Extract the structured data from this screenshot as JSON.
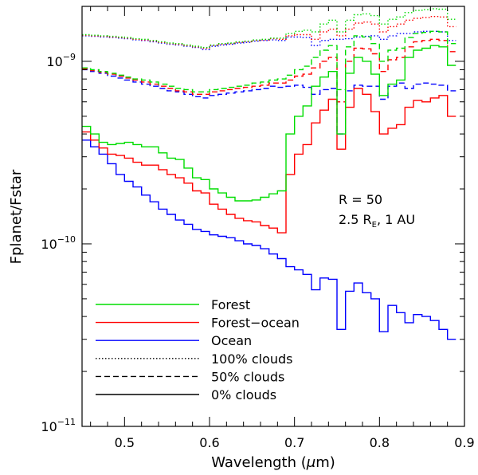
{
  "chart_data": {
    "type": "line",
    "xlabel": "Wavelength (",
    "xlabel_symbol": "μ",
    "xlabel_suffix": "m)",
    "ylabel": "Fplanet/Fstar",
    "y_scale": "log",
    "xlim": [
      0.45,
      0.9
    ],
    "ylim": [
      1e-11,
      2e-09
    ],
    "x_ticks": [
      {
        "value": 0.5,
        "label": "0.5"
      },
      {
        "value": 0.6,
        "label": "0.6"
      },
      {
        "value": 0.7,
        "label": "0.7"
      },
      {
        "value": 0.8,
        "label": "0.8"
      },
      {
        "value": 0.9,
        "label": "0.9"
      }
    ],
    "y_ticks": [
      {
        "value": 1e-09,
        "base": "10",
        "exp": "−9"
      },
      {
        "value": 1e-10,
        "base": "10",
        "exp": "−10"
      },
      {
        "value": 1e-11,
        "base": "10",
        "exp": "−11"
      }
    ],
    "annotation": {
      "line1": "R  =  50",
      "line2_prefix": "2.5 R",
      "line2_sub": "E",
      "line2_suffix": ",  1 AU"
    },
    "x": [
      0.455,
      0.465,
      0.475,
      0.485,
      0.495,
      0.505,
      0.515,
      0.525,
      0.535,
      0.545,
      0.555,
      0.565,
      0.575,
      0.585,
      0.595,
      0.605,
      0.615,
      0.625,
      0.635,
      0.645,
      0.655,
      0.665,
      0.675,
      0.685,
      0.695,
      0.705,
      0.715,
      0.725,
      0.735,
      0.745,
      0.755,
      0.765,
      0.775,
      0.785,
      0.795,
      0.805,
      0.815,
      0.825,
      0.835,
      0.845,
      0.855,
      0.865,
      0.875,
      0.885
    ],
    "series": [
      {
        "name": "Ocean 0% clouds",
        "surface": "Ocean",
        "clouds": "0%",
        "color": "#0000ff",
        "values": [
          3.7e-10,
          3.4e-10,
          3.1e-10,
          2.75e-10,
          2.4e-10,
          2.2e-10,
          2.05e-10,
          1.85e-10,
          1.7e-10,
          1.55e-10,
          1.45e-10,
          1.35e-10,
          1.28e-10,
          1.2e-10,
          1.17e-10,
          1.12e-10,
          1.1e-10,
          1.08e-10,
          1.04e-10,
          1e-10,
          9.8e-11,
          9.4e-11,
          8.8e-11,
          8.3e-11,
          7.5e-11,
          7.2e-11,
          6.8e-11,
          5.6e-11,
          6.5e-11,
          6.4e-11,
          3.4e-11,
          5.5e-11,
          6.1e-11,
          5.4e-11,
          5e-11,
          3.3e-11,
          4.6e-11,
          4.2e-11,
          3.7e-11,
          4.1e-11,
          4e-11,
          3.8e-11,
          3.4e-11,
          3e-11
        ]
      },
      {
        "name": "Forest-ocean 0% clouds",
        "surface": "Forest-ocean",
        "clouds": "0%",
        "color": "#ff0000",
        "values": [
          4.1e-10,
          3.7e-10,
          3.35e-10,
          3.1e-10,
          3.05e-10,
          2.95e-10,
          2.8e-10,
          2.7e-10,
          2.7e-10,
          2.55e-10,
          2.4e-10,
          2.3e-10,
          2.15e-10,
          1.95e-10,
          1.9e-10,
          1.65e-10,
          1.55e-10,
          1.45e-10,
          1.38e-10,
          1.34e-10,
          1.32e-10,
          1.26e-10,
          1.22e-10,
          1.15e-10,
          2.4e-10,
          3.1e-10,
          3.5e-10,
          4.6e-10,
          5.4e-10,
          6.2e-10,
          3.3e-10,
          5.6e-10,
          7.1e-10,
          6.6e-10,
          5.3e-10,
          4e-10,
          4.3e-10,
          4.5e-10,
          5.6e-10,
          6.1e-10,
          6e-10,
          6.3e-10,
          6.5e-10,
          5e-10
        ]
      },
      {
        "name": "Forest 0% clouds",
        "surface": "Forest",
        "clouds": "0%",
        "color": "#00dd00",
        "values": [
          4.4e-10,
          4e-10,
          3.6e-10,
          3.5e-10,
          3.55e-10,
          3.6e-10,
          3.5e-10,
          3.4e-10,
          3.4e-10,
          3.15e-10,
          2.95e-10,
          2.9e-10,
          2.6e-10,
          2.3e-10,
          2.25e-10,
          2e-10,
          1.9e-10,
          1.8e-10,
          1.72e-10,
          1.72e-10,
          1.74e-10,
          1.8e-10,
          1.88e-10,
          1.95e-10,
          4e-10,
          5e-10,
          5.7e-10,
          7.3e-10,
          8.2e-10,
          8.8e-10,
          4e-10,
          8.6e-10,
          1.05e-09,
          1e-09,
          8.5e-10,
          6.5e-10,
          7.5e-10,
          7.9e-10,
          1.05e-09,
          1.15e-09,
          1.18e-09,
          1.22e-09,
          1.2e-09,
          9.5e-10
        ]
      },
      {
        "name": "Ocean 50% clouds",
        "surface": "Ocean",
        "clouds": "50%",
        "color": "#0000ff",
        "values": [
          9e-10,
          8.8e-10,
          8.6e-10,
          8.3e-10,
          8.1e-10,
          7.9e-10,
          7.7e-10,
          7.5e-10,
          7.3e-10,
          7.1e-10,
          6.9e-10,
          6.8e-10,
          6.6e-10,
          6.4e-10,
          6.3e-10,
          6.5e-10,
          6.6e-10,
          6.7e-10,
          6.8e-10,
          6.9e-10,
          7e-10,
          7.1e-10,
          7.3e-10,
          7.2e-10,
          7.3e-10,
          7.4e-10,
          7.2e-10,
          6.6e-10,
          7e-10,
          7.1e-10,
          4e-10,
          6.9e-10,
          7.4e-10,
          7.3e-10,
          7.3e-10,
          6.2e-10,
          7.3e-10,
          7.6e-10,
          7.1e-10,
          7.5e-10,
          7.6e-10,
          7.5e-10,
          7.4e-10,
          6.9e-10
        ]
      },
      {
        "name": "Forest-ocean 50% clouds",
        "surface": "Forest-ocean",
        "clouds": "50%",
        "color": "#ff0000",
        "values": [
          9.1e-10,
          8.9e-10,
          8.7e-10,
          8.5e-10,
          8.3e-10,
          8.1e-10,
          7.9e-10,
          7.7e-10,
          7.5e-10,
          7.3e-10,
          7.1e-10,
          6.9e-10,
          6.8e-10,
          6.6e-10,
          6.6e-10,
          6.8e-10,
          6.9e-10,
          7e-10,
          7.1e-10,
          7.2e-10,
          7.3e-10,
          7.4e-10,
          7.6e-10,
          7.6e-10,
          7.9e-10,
          8.3e-10,
          8.5e-10,
          9.2e-10,
          1e-09,
          1.05e-09,
          6e-10,
          1e-09,
          1.18e-09,
          1.17e-09,
          1.1e-09,
          8.8e-10,
          1.02e-09,
          1.05e-09,
          1.2e-09,
          1.28e-09,
          1.3e-09,
          1.32e-09,
          1.3e-09,
          1.13e-09
        ]
      },
      {
        "name": "Forest 50% clouds",
        "surface": "Forest",
        "clouds": "50%",
        "color": "#00dd00",
        "values": [
          9.2e-10,
          9e-10,
          8.8e-10,
          8.6e-10,
          8.4e-10,
          8.2e-10,
          8e-10,
          7.9e-10,
          7.7e-10,
          7.5e-10,
          7.3e-10,
          7.1e-10,
          7e-10,
          6.8e-10,
          6.8e-10,
          7e-10,
          7.1e-10,
          7.2e-10,
          7.3e-10,
          7.4e-10,
          7.6e-10,
          7.7e-10,
          7.9e-10,
          8e-10,
          8.4e-10,
          9e-10,
          9.4e-10,
          1.05e-09,
          1.15e-09,
          1.22e-09,
          7e-10,
          1.2e-09,
          1.38e-09,
          1.36e-09,
          1.25e-09,
          1e-09,
          1.15e-09,
          1.18e-09,
          1.35e-09,
          1.42e-09,
          1.44e-09,
          1.46e-09,
          1.45e-09,
          1.25e-09
        ]
      },
      {
        "name": "Ocean 100% clouds",
        "surface": "Ocean",
        "clouds": "100%",
        "color": "#0000ff",
        "values": [
          1.38e-09,
          1.37e-09,
          1.36e-09,
          1.35e-09,
          1.34e-09,
          1.33e-09,
          1.31e-09,
          1.3e-09,
          1.28e-09,
          1.26e-09,
          1.24e-09,
          1.23e-09,
          1.21e-09,
          1.19e-09,
          1.16e-09,
          1.21e-09,
          1.23e-09,
          1.24e-09,
          1.26e-09,
          1.27e-09,
          1.29e-09,
          1.3e-09,
          1.31e-09,
          1.3e-09,
          1.36e-09,
          1.36e-09,
          1.35e-09,
          1.22e-09,
          1.3e-09,
          1.32e-09,
          1.32e-09,
          1.33e-09,
          1.36e-09,
          1.37e-09,
          1.38e-09,
          1.32e-09,
          1.38e-09,
          1.42e-09,
          1.42e-09,
          1.45e-09,
          1.46e-09,
          1.46e-09,
          1.45e-09,
          1.3e-09
        ]
      },
      {
        "name": "Forest-ocean 100% clouds",
        "surface": "Forest-ocean",
        "clouds": "100%",
        "color": "#ff0000",
        "values": [
          1.39e-09,
          1.38e-09,
          1.37e-09,
          1.36e-09,
          1.35e-09,
          1.34e-09,
          1.32e-09,
          1.31e-09,
          1.29e-09,
          1.27e-09,
          1.25e-09,
          1.24e-09,
          1.22e-09,
          1.2e-09,
          1.18e-09,
          1.22e-09,
          1.24e-09,
          1.25e-09,
          1.27e-09,
          1.28e-09,
          1.3e-09,
          1.31e-09,
          1.33e-09,
          1.32e-09,
          1.38e-09,
          1.4e-09,
          1.4e-09,
          1.32e-09,
          1.45e-09,
          1.5e-09,
          1.38e-09,
          1.5e-09,
          1.62e-09,
          1.64e-09,
          1.6e-09,
          1.45e-09,
          1.55e-09,
          1.6e-09,
          1.68e-09,
          1.72e-09,
          1.74e-09,
          1.76e-09,
          1.75e-09,
          1.55e-09
        ]
      },
      {
        "name": "Forest 100% clouds",
        "surface": "Forest",
        "clouds": "100%",
        "color": "#00dd00",
        "values": [
          1.4e-09,
          1.39e-09,
          1.38e-09,
          1.37e-09,
          1.36e-09,
          1.35e-09,
          1.33e-09,
          1.32e-09,
          1.3e-09,
          1.28e-09,
          1.26e-09,
          1.25e-09,
          1.23e-09,
          1.21e-09,
          1.19e-09,
          1.23e-09,
          1.25e-09,
          1.26e-09,
          1.28e-09,
          1.29e-09,
          1.31e-09,
          1.32e-09,
          1.34e-09,
          1.34e-09,
          1.42e-09,
          1.46e-09,
          1.48e-09,
          1.45e-09,
          1.6e-09,
          1.68e-09,
          1.45e-09,
          1.68e-09,
          1.8e-09,
          1.82e-09,
          1.78e-09,
          1.6e-09,
          1.7e-09,
          1.75e-09,
          1.85e-09,
          1.9e-09,
          1.92e-09,
          1.94e-09,
          1.93e-09,
          1.7e-09
        ]
      }
    ],
    "legend": [
      {
        "label": "Forest",
        "color": "#00dd00",
        "style": "solid"
      },
      {
        "label": "Forest−ocean",
        "color": "#ff0000",
        "style": "solid"
      },
      {
        "label": "Ocean",
        "color": "#0000ff",
        "style": "solid"
      },
      {
        "label": "100% clouds",
        "color": "#000000",
        "style": "dotted"
      },
      {
        "label": "50% clouds",
        "color": "#000000",
        "style": "dashed"
      },
      {
        "label": "0% clouds",
        "color": "#000000",
        "style": "solid"
      }
    ]
  }
}
